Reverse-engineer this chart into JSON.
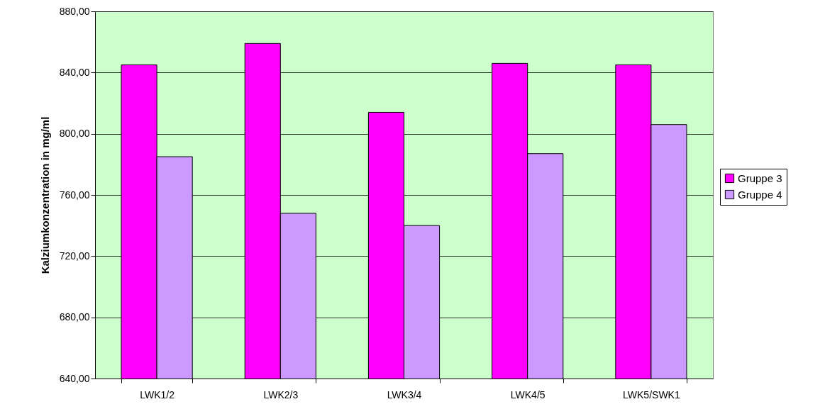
{
  "chart_data": {
    "type": "bar",
    "ylabel": "Kalziumkonzentration in mg/ml",
    "categories": [
      "LWK1/2",
      "LWK2/3",
      "LWK3/4",
      "LWK4/5",
      "LWK5/SWK1"
    ],
    "series": [
      {
        "name": "Gruppe 3",
        "color": "#ff00ff",
        "values": [
          845,
          859,
          814,
          846,
          845
        ]
      },
      {
        "name": "Gruppe 4",
        "color": "#cc99ff",
        "values": [
          785,
          748,
          740,
          787,
          806
        ]
      }
    ],
    "ylim": [
      640,
      880
    ],
    "yticks": [
      {
        "value": 640,
        "label": "640,00"
      },
      {
        "value": 680,
        "label": "680,00"
      },
      {
        "value": 720,
        "label": "720,00"
      },
      {
        "value": 760,
        "label": "760,00"
      },
      {
        "value": 800,
        "label": "800,00"
      },
      {
        "value": 840,
        "label": "840,00"
      },
      {
        "value": 880,
        "label": "880,00"
      }
    ],
    "grid": "y",
    "legend": "right"
  }
}
